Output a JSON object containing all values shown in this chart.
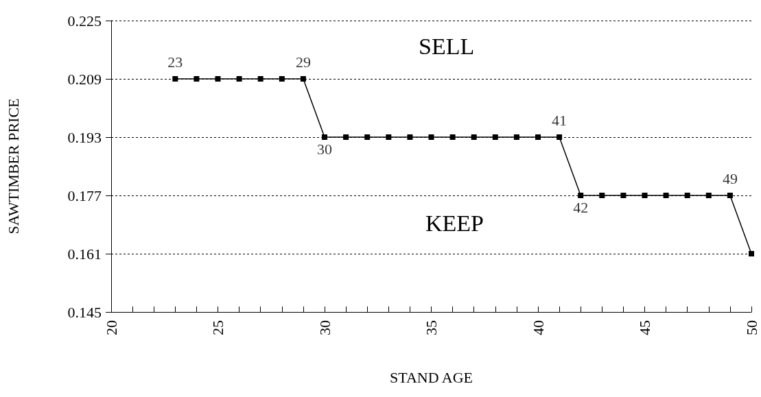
{
  "chart_data": {
    "type": "line",
    "xlabel": "STAND AGE",
    "ylabel": "SAWTIMBER PRICE",
    "x": [
      23,
      24,
      25,
      26,
      27,
      28,
      29,
      30,
      31,
      32,
      33,
      34,
      35,
      36,
      37,
      38,
      39,
      40,
      41,
      42,
      43,
      44,
      45,
      46,
      47,
      48,
      49,
      50
    ],
    "series": [
      {
        "color": "#000000",
        "values": [
          0.209,
          0.209,
          0.209,
          0.209,
          0.209,
          0.209,
          0.209,
          0.193,
          0.193,
          0.193,
          0.193,
          0.193,
          0.193,
          0.193,
          0.193,
          0.193,
          0.193,
          0.193,
          0.193,
          0.177,
          0.177,
          0.177,
          0.177,
          0.177,
          0.177,
          0.177,
          0.177,
          0.161
        ]
      }
    ],
    "xlim": [
      20,
      50
    ],
    "xticks": [
      20,
      25,
      30,
      35,
      40,
      45,
      50
    ],
    "ylim": [
      0.145,
      0.225
    ],
    "yticks": [
      0.145,
      0.161,
      0.177,
      0.193,
      0.209,
      0.225
    ],
    "annotations": [
      {
        "text": "23",
        "x": 23,
        "y": 0.209
      },
      {
        "text": "29",
        "x": 29,
        "y": 0.209
      },
      {
        "text": "30",
        "x": 30,
        "y": 0.193
      },
      {
        "text": "41",
        "x": 41,
        "y": 0.193
      },
      {
        "text": "42",
        "x": 42,
        "y": 0.177
      },
      {
        "text": "49",
        "x": 49,
        "y": 0.177
      },
      "SELL",
      "KEEP"
    ],
    "grid": "y",
    "marker": "square",
    "line_style": "solid"
  }
}
